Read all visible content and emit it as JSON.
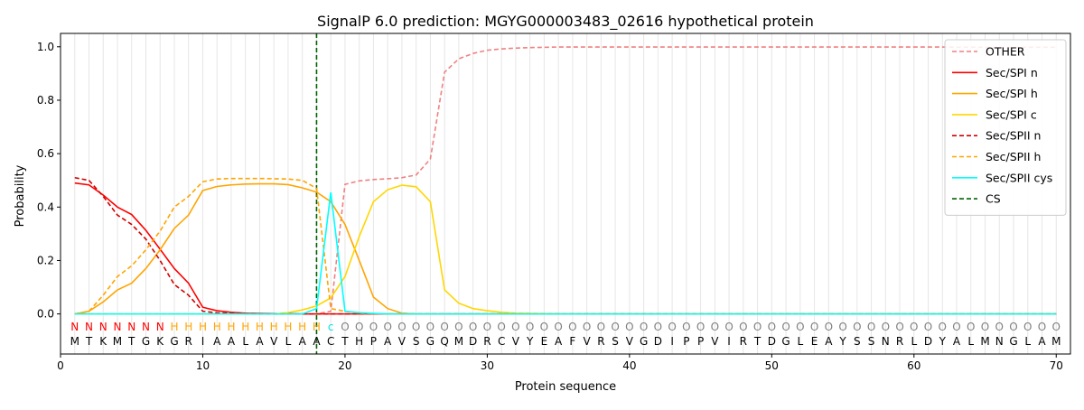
{
  "chart_data": {
    "type": "line",
    "title": "SignalP 6.0 prediction: MGYG000003483_02616 hypothetical protein",
    "xlabel": "Protein sequence",
    "ylabel": "Probability",
    "xlim": [
      0,
      71
    ],
    "ylim": [
      -0.15,
      1.05
    ],
    "x_ticks": [
      0,
      10,
      20,
      30,
      40,
      50,
      60,
      70
    ],
    "y_ticks": [
      0.0,
      0.2,
      0.4,
      0.6,
      0.8,
      1.0
    ],
    "x_tick_labels": [
      "0",
      "10",
      "20",
      "30",
      "40",
      "50",
      "60",
      "70"
    ],
    "y_tick_labels": [
      "0.0",
      "0.2",
      "0.4",
      "0.6",
      "0.8",
      "1.0"
    ],
    "grid": "vertical lines at each residue",
    "legend_position": "top-right",
    "sequence": [
      "M",
      "T",
      "K",
      "M",
      "T",
      "G",
      "K",
      "G",
      "R",
      "I",
      "A",
      "A",
      "L",
      "A",
      "V",
      "L",
      "A",
      "A",
      "C",
      "T",
      "H",
      "P",
      "A",
      "V",
      "S",
      "G",
      "Q",
      "M",
      "D",
      "R",
      "C",
      "V",
      "Y",
      "E",
      "A",
      "F",
      "V",
      "R",
      "S",
      "V",
      "G",
      "D",
      "I",
      "P",
      "P",
      "V",
      "I",
      "R",
      "T",
      "D",
      "G",
      "L",
      "E",
      "A",
      "Y",
      "S",
      "S",
      "N",
      "R",
      "L",
      "D",
      "Y",
      "A",
      "L",
      "M",
      "N",
      "G",
      "L",
      "A",
      "M"
    ],
    "region_labels": [
      "N",
      "N",
      "N",
      "N",
      "N",
      "N",
      "N",
      "H",
      "H",
      "H",
      "H",
      "H",
      "H",
      "H",
      "H",
      "H",
      "H",
      "H",
      "c",
      "O",
      "O",
      "O",
      "O",
      "O",
      "O",
      "O",
      "O",
      "O",
      "O",
      "O",
      "O",
      "O",
      "O",
      "O",
      "O",
      "O",
      "O",
      "O",
      "O",
      "O",
      "O",
      "O",
      "O",
      "O",
      "O",
      "O",
      "O",
      "O",
      "O",
      "O",
      "O",
      "O",
      "O",
      "O",
      "O",
      "O",
      "O",
      "O",
      "O",
      "O",
      "O",
      "O",
      "O",
      "O",
      "O",
      "O",
      "O",
      "O",
      "O",
      "O"
    ],
    "region_colors": {
      "N": "#ff0000",
      "H": "#ffa500",
      "c": "#00e5e5",
      "O": "#808080"
    },
    "cleavage_site": 18,
    "series": [
      {
        "name": "OTHER",
        "color": "#f08080",
        "dash": "dashed",
        "values": [
          0.0,
          0.0,
          0.0,
          0.0,
          0.0,
          0.0,
          0.0,
          0.0,
          0.0,
          0.0,
          0.0,
          0.0,
          0.0,
          0.0,
          0.0,
          0.0,
          0.0,
          0.0,
          0.01,
          0.485,
          0.498,
          0.503,
          0.506,
          0.51,
          0.52,
          0.58,
          0.905,
          0.955,
          0.975,
          0.987,
          0.992,
          0.995,
          0.997,
          0.998,
          0.999,
          0.999,
          0.999,
          0.999,
          0.999,
          0.999,
          0.999,
          0.999,
          0.999,
          0.999,
          0.999,
          0.999,
          0.999,
          0.999,
          0.999,
          0.999,
          0.999,
          0.999,
          0.999,
          0.999,
          0.999,
          0.999,
          0.999,
          0.999,
          0.999,
          0.999,
          0.999,
          0.999,
          0.998,
          0.998,
          0.998,
          0.998,
          0.998,
          0.998,
          0.998,
          0.998
        ]
      },
      {
        "name": "Sec/SPI n",
        "color": "#ff0000",
        "dash": "solid",
        "values": [
          0.49,
          0.483,
          0.445,
          0.4,
          0.372,
          0.313,
          0.242,
          0.17,
          0.115,
          0.025,
          0.012,
          0.006,
          0.003,
          0.002,
          0.001,
          0.001,
          0.0,
          0.0,
          0.0,
          0.0,
          0.0,
          0.0,
          0.0,
          0.0,
          0.0,
          0.0,
          0.0,
          0.0,
          0.0,
          0.0,
          0.0,
          0.0,
          0.0,
          0.0,
          0.0,
          0.0,
          0.0,
          0.0,
          0.0,
          0.0,
          0.0,
          0.0,
          0.0,
          0.0,
          0.0,
          0.0,
          0.0,
          0.0,
          0.0,
          0.0,
          0.0,
          0.0,
          0.0,
          0.0,
          0.0,
          0.0,
          0.0,
          0.0,
          0.0,
          0.0,
          0.0,
          0.0,
          0.0,
          0.0,
          0.0,
          0.0,
          0.0,
          0.0,
          0.0,
          0.0
        ]
      },
      {
        "name": "Sec/SPI h",
        "color": "#ffa500",
        "dash": "solid",
        "values": [
          0.0,
          0.01,
          0.045,
          0.09,
          0.115,
          0.17,
          0.24,
          0.32,
          0.37,
          0.462,
          0.477,
          0.483,
          0.486,
          0.487,
          0.487,
          0.484,
          0.472,
          0.456,
          0.42,
          0.335,
          0.2,
          0.063,
          0.02,
          0.003,
          0.0,
          0.0,
          0.0,
          0.0,
          0.0,
          0.0,
          0.0,
          0.0,
          0.0,
          0.0,
          0.0,
          0.0,
          0.0,
          0.0,
          0.0,
          0.0,
          0.0,
          0.0,
          0.0,
          0.0,
          0.0,
          0.0,
          0.0,
          0.0,
          0.0,
          0.0,
          0.0,
          0.0,
          0.0,
          0.0,
          0.0,
          0.0,
          0.0,
          0.0,
          0.0,
          0.0,
          0.0,
          0.0,
          0.0,
          0.0,
          0.0,
          0.0,
          0.0,
          0.0,
          0.0,
          0.0
        ]
      },
      {
        "name": "Sec/SPI c",
        "color": "#ffd700",
        "dash": "solid",
        "values": [
          0.0,
          0.0,
          0.0,
          0.0,
          0.0,
          0.0,
          0.0,
          0.0,
          0.0,
          0.0,
          0.0,
          0.0,
          0.0,
          0.0,
          0.0,
          0.005,
          0.015,
          0.03,
          0.06,
          0.14,
          0.29,
          0.42,
          0.465,
          0.482,
          0.476,
          0.42,
          0.09,
          0.04,
          0.02,
          0.012,
          0.006,
          0.003,
          0.002,
          0.001,
          0.0,
          0.0,
          0.0,
          0.0,
          0.0,
          0.0,
          0.0,
          0.0,
          0.0,
          0.0,
          0.0,
          0.0,
          0.0,
          0.0,
          0.0,
          0.0,
          0.0,
          0.0,
          0.0,
          0.0,
          0.0,
          0.0,
          0.0,
          0.0,
          0.0,
          0.0,
          0.0,
          0.0,
          0.0,
          0.0,
          0.0,
          0.0,
          0.0,
          0.0,
          0.0,
          0.0
        ]
      },
      {
        "name": "Sec/SPII n",
        "color": "#d00000",
        "dash": "dashed",
        "values": [
          0.51,
          0.5,
          0.44,
          0.37,
          0.335,
          0.28,
          0.2,
          0.11,
          0.07,
          0.01,
          0.004,
          0.002,
          0.001,
          0.0,
          0.0,
          0.0,
          0.0,
          0.0,
          0.0,
          0.0,
          0.0,
          0.0,
          0.0,
          0.0,
          0.0,
          0.0,
          0.0,
          0.0,
          0.0,
          0.0,
          0.0,
          0.0,
          0.0,
          0.0,
          0.0,
          0.0,
          0.0,
          0.0,
          0.0,
          0.0,
          0.0,
          0.0,
          0.0,
          0.0,
          0.0,
          0.0,
          0.0,
          0.0,
          0.0,
          0.0,
          0.0,
          0.0,
          0.0,
          0.0,
          0.0,
          0.0,
          0.0,
          0.0,
          0.0,
          0.0,
          0.0,
          0.0,
          0.0,
          0.0,
          0.0,
          0.0,
          0.0,
          0.0,
          0.0,
          0.0
        ]
      },
      {
        "name": "Sec/SPII h",
        "color": "#ffa500",
        "dash": "dashed",
        "values": [
          0.0,
          0.01,
          0.07,
          0.14,
          0.18,
          0.24,
          0.31,
          0.4,
          0.44,
          0.495,
          0.505,
          0.507,
          0.507,
          0.507,
          0.506,
          0.505,
          0.5,
          0.47,
          0.02,
          0.01,
          0.003,
          0.001,
          0.0,
          0.0,
          0.0,
          0.0,
          0.0,
          0.0,
          0.0,
          0.0,
          0.0,
          0.0,
          0.0,
          0.0,
          0.0,
          0.0,
          0.0,
          0.0,
          0.0,
          0.0,
          0.0,
          0.0,
          0.0,
          0.0,
          0.0,
          0.0,
          0.0,
          0.0,
          0.0,
          0.0,
          0.0,
          0.0,
          0.0,
          0.0,
          0.0,
          0.0,
          0.0,
          0.0,
          0.0,
          0.0,
          0.0,
          0.0,
          0.0,
          0.0,
          0.0,
          0.0,
          0.0,
          0.0,
          0.0,
          0.0
        ]
      },
      {
        "name": "Sec/SPII cys",
        "color": "#00ffff",
        "dash": "solid",
        "values": [
          0.0,
          0.0,
          0.0,
          0.0,
          0.0,
          0.0,
          0.0,
          0.0,
          0.0,
          0.0,
          0.0,
          0.0,
          0.0,
          0.0,
          0.0,
          0.0,
          0.0,
          0.02,
          0.455,
          0.01,
          0.005,
          0.002,
          0.0,
          0.0,
          0.0,
          0.0,
          0.0,
          0.0,
          0.0,
          0.0,
          0.0,
          0.0,
          0.0,
          0.0,
          0.0,
          0.0,
          0.0,
          0.0,
          0.0,
          0.0,
          0.0,
          0.0,
          0.0,
          0.0,
          0.0,
          0.0,
          0.0,
          0.0,
          0.0,
          0.0,
          0.0,
          0.0,
          0.0,
          0.0,
          0.0,
          0.0,
          0.0,
          0.0,
          0.0,
          0.0,
          0.0,
          0.0,
          0.0,
          0.0,
          0.0,
          0.0,
          0.0,
          0.0,
          0.0,
          0.0
        ]
      }
    ],
    "cs_legend": {
      "name": "CS",
      "color": "#006400",
      "dash": "dashed"
    }
  }
}
